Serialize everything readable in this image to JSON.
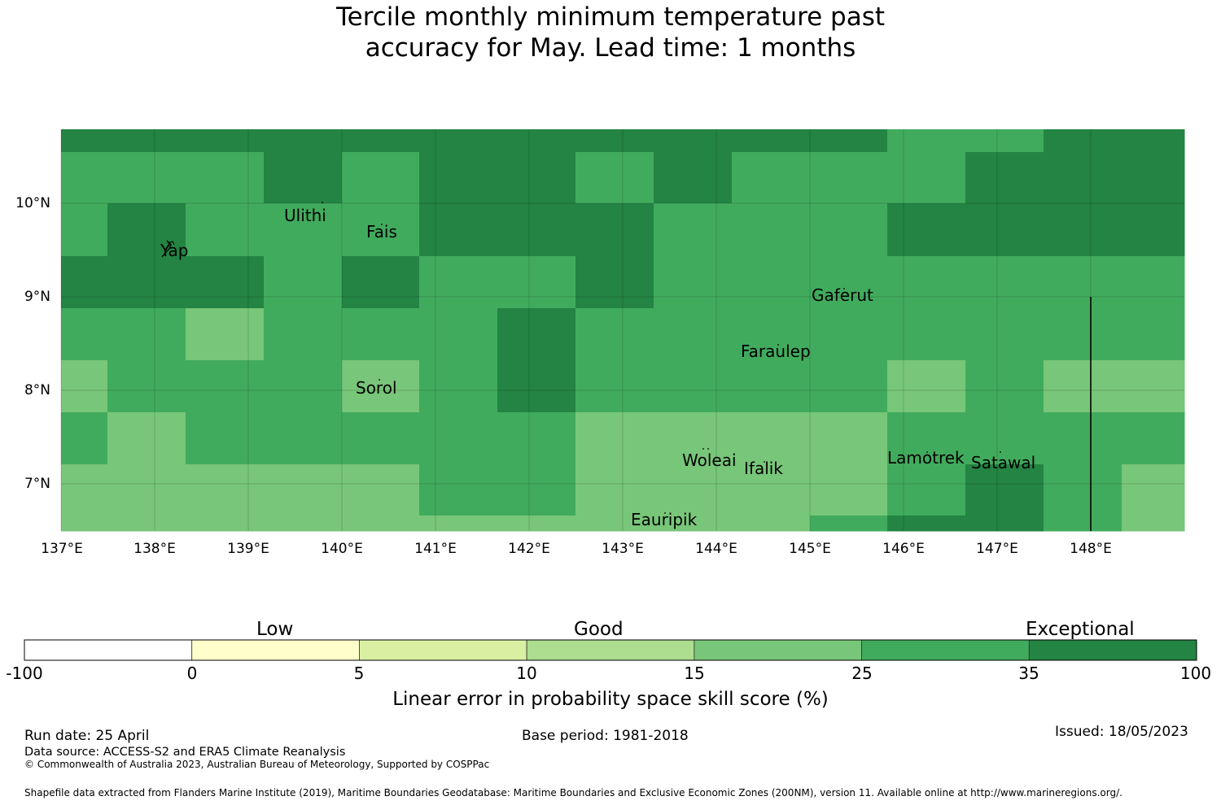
{
  "title": {
    "line1": "Tercile monthly minimum temperature past",
    "line2": "accuracy for May. Lead time: 1 months"
  },
  "map": {
    "lon_labels": [
      "137°E",
      "138°E",
      "139°E",
      "140°E",
      "141°E",
      "142°E",
      "143°E",
      "144°E",
      "145°E",
      "146°E",
      "147°E",
      "148°E"
    ],
    "lat_labels": [
      "10°N",
      "9°N",
      "8°N",
      "7°N"
    ],
    "places": [
      "Ulithi",
      "Fais",
      "Yap",
      "Gaferut",
      "Faraulep",
      "Sorol",
      "Woleai",
      "Ifalik",
      "Lamotrek",
      "Satawal",
      "Eauripik"
    ],
    "colors": {
      "category_25_35": "#41ab5d",
      "category_35_100": "#238443",
      "category_15_25": "#78c679"
    }
  },
  "colorbar": {
    "categories": [
      "Low",
      "Good",
      "Exceptional"
    ],
    "ticks": [
      "-100",
      "0",
      "5",
      "10",
      "15",
      "25",
      "35",
      "100"
    ],
    "colors": [
      "#ffffff",
      "#ffffcc",
      "#d9f0a3",
      "#addd8e",
      "#78c679",
      "#41ab5d",
      "#238443"
    ],
    "label": "Linear error in probability space skill score (%)"
  },
  "footer": {
    "run_date": "Run date: 25 April",
    "base_period": "Base period: 1981-2018",
    "issued": "Issued: 18/05/2023",
    "data_source": "Data source: ACCESS-S2 and ERA5 Climate Reanalysis",
    "copyright": "© Commonwealth of Australia 2023, Australian Bureau of Meteorology, Supported by COSPPac",
    "shapefile": "Shapefile data extracted from Flanders Marine Institute (2019), Maritime Boundaries Geodatabase: Maritime Boundaries and Exclusive Economic Zones (200NM), version 11. Available online at http://www.marineregions.org/."
  }
}
